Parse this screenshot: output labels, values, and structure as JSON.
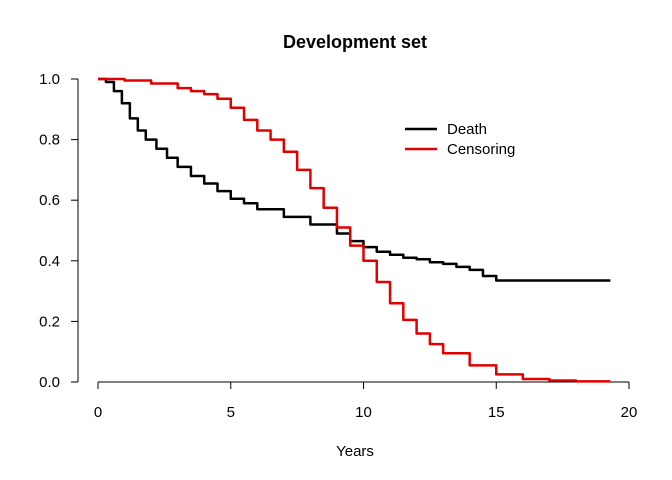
{
  "chart_data": {
    "type": "line",
    "title": "Development set",
    "xlabel": "Years",
    "ylabel": "",
    "xlim": [
      0,
      20
    ],
    "ylim": [
      0,
      1
    ],
    "xticks": [
      "0",
      "5",
      "10",
      "15",
      "20"
    ],
    "yticks": [
      "0.0",
      "0.2",
      "0.4",
      "0.6",
      "0.8",
      "1.0"
    ],
    "grid": false,
    "legend_position": "top-right",
    "series": [
      {
        "name": "Death",
        "color": "#000000",
        "step": true,
        "x": [
          0,
          0.3,
          0.6,
          0.9,
          1.2,
          1.5,
          1.8,
          2.2,
          2.6,
          3.0,
          3.5,
          4.0,
          4.5,
          5.0,
          5.5,
          6.0,
          7.0,
          8.0,
          9.0,
          9.5,
          10.0,
          10.5,
          11.0,
          11.5,
          12.0,
          12.5,
          13.0,
          13.5,
          14.0,
          14.5,
          15.0,
          16.0,
          17.0,
          18.0,
          19.3
        ],
        "y": [
          1.0,
          0.99,
          0.96,
          0.92,
          0.87,
          0.83,
          0.8,
          0.77,
          0.74,
          0.71,
          0.68,
          0.655,
          0.63,
          0.605,
          0.59,
          0.57,
          0.545,
          0.52,
          0.49,
          0.465,
          0.445,
          0.43,
          0.42,
          0.41,
          0.405,
          0.395,
          0.39,
          0.38,
          0.37,
          0.35,
          0.335,
          0.335,
          0.335,
          0.335,
          0.335
        ]
      },
      {
        "name": "Censoring",
        "color": "#e00000",
        "step": true,
        "x": [
          0,
          1.0,
          2.0,
          3.0,
          3.5,
          4.0,
          4.5,
          5.0,
          5.5,
          6.0,
          6.5,
          7.0,
          7.5,
          8.0,
          8.5,
          9.0,
          9.5,
          10.0,
          10.5,
          11.0,
          11.5,
          12.0,
          12.5,
          13.0,
          14.0,
          15.0,
          16.0,
          17.0,
          18.0,
          19.3
        ],
        "y": [
          1.0,
          0.995,
          0.985,
          0.97,
          0.96,
          0.95,
          0.935,
          0.905,
          0.865,
          0.83,
          0.8,
          0.76,
          0.7,
          0.64,
          0.575,
          0.51,
          0.45,
          0.4,
          0.33,
          0.26,
          0.205,
          0.16,
          0.125,
          0.095,
          0.055,
          0.025,
          0.01,
          0.005,
          0.002,
          0.002
        ]
      }
    ]
  }
}
